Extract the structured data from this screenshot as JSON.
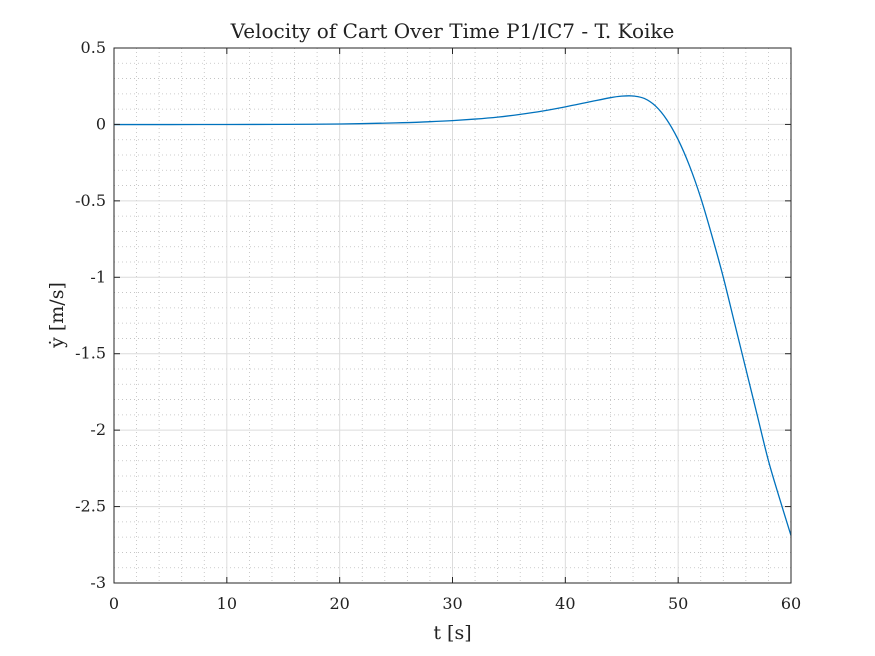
{
  "chart_data": {
    "type": "line",
    "title": "Velocity of Cart Over Time P1/IC7 - T. Koike",
    "xlabel": "t [s]",
    "ylabel": "ẏ [m/s]",
    "xlim": [
      0,
      60
    ],
    "ylim": [
      -3,
      0.5
    ],
    "xticks": [
      0,
      10,
      20,
      30,
      40,
      50,
      60
    ],
    "xtick_labels": [
      "0",
      "10",
      "20",
      "30",
      "40",
      "50",
      "60"
    ],
    "yticks": [
      0.5,
      0,
      -0.5,
      -1,
      -1.5,
      -2,
      -2.5,
      -3
    ],
    "ytick_labels": [
      "0.5",
      "0",
      "-0.5",
      "-1",
      "-1.5",
      "-2",
      "-2.5",
      "-3"
    ],
    "grid": "major and minor",
    "series": [
      {
        "color": "#0072BD",
        "x": [
          0,
          5,
          10,
          15,
          20,
          25,
          28,
          30,
          32,
          34,
          36,
          38,
          40,
          42,
          44,
          45,
          46,
          47,
          48,
          49,
          50,
          51,
          52,
          53,
          54,
          55,
          56,
          57,
          58,
          59,
          60
        ],
        "y": [
          -0.001,
          -0.0008,
          -0.0004,
          0.0005,
          0.003,
          0.01,
          0.018,
          0.025,
          0.035,
          0.048,
          0.066,
          0.088,
          0.115,
          0.145,
          0.175,
          0.185,
          0.186,
          0.17,
          0.12,
          0.03,
          -0.1,
          -0.27,
          -0.48,
          -0.73,
          -1.0,
          -1.3,
          -1.6,
          -1.9,
          -2.2,
          -2.45,
          -2.69
        ]
      }
    ]
  }
}
